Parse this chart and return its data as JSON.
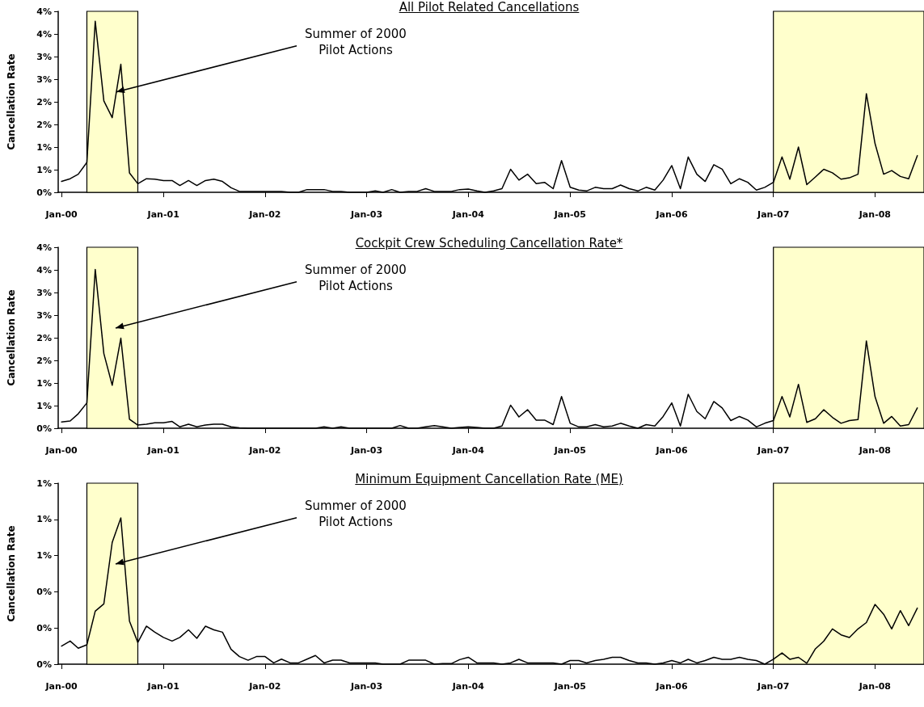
{
  "chart_data": [
    {
      "type": "line",
      "title": "All Pilot Related Cancellations",
      "ylabel": "Cancellation Rate",
      "line_style": "solid",
      "marker": "none",
      "x": [
        "2000-01",
        "2000-02",
        "2000-03",
        "2000-04",
        "2000-05",
        "2000-06",
        "2000-07",
        "2000-08",
        "2000-09",
        "2000-10",
        "2000-11",
        "2000-12",
        "2001-01",
        "2001-02",
        "2001-03",
        "2001-04",
        "2001-05",
        "2001-06",
        "2001-07",
        "2001-08",
        "2001-09",
        "2001-10",
        "2001-11",
        "2001-12",
        "2002-01",
        "2002-02",
        "2002-03",
        "2002-04",
        "2002-05",
        "2002-06",
        "2002-07",
        "2002-08",
        "2002-09",
        "2002-10",
        "2002-11",
        "2002-12",
        "2003-01",
        "2003-02",
        "2003-03",
        "2003-04",
        "2003-05",
        "2003-06",
        "2003-07",
        "2003-08",
        "2003-09",
        "2003-10",
        "2003-11",
        "2003-12",
        "2004-01",
        "2004-02",
        "2004-03",
        "2004-04",
        "2004-05",
        "2004-06",
        "2004-07",
        "2004-08",
        "2004-09",
        "2004-10",
        "2004-11",
        "2004-12",
        "2005-01",
        "2005-02",
        "2005-03",
        "2005-04",
        "2005-05",
        "2005-06",
        "2005-07",
        "2005-08",
        "2005-09",
        "2005-10",
        "2005-11",
        "2005-12",
        "2006-01",
        "2006-02",
        "2006-03",
        "2006-04",
        "2006-05",
        "2006-06",
        "2006-07",
        "2006-08",
        "2006-09",
        "2006-10",
        "2006-11",
        "2006-12",
        "2007-01",
        "2007-02",
        "2007-03",
        "2007-04",
        "2007-05",
        "2007-06",
        "2007-07",
        "2007-08",
        "2007-09",
        "2007-10",
        "2007-11",
        "2007-12",
        "2008-01",
        "2008-02",
        "2008-03",
        "2008-04",
        "2008-05",
        "2008-06"
      ],
      "series": [
        {
          "color": "#000000",
          "values": [
            0.24,
            0.3,
            0.4,
            0.66,
            3.78,
            2.02,
            1.65,
            2.83,
            0.43,
            0.19,
            0.3,
            0.29,
            0.26,
            0.26,
            0.15,
            0.26,
            0.15,
            0.26,
            0.29,
            0.24,
            0.1,
            0.02,
            0.02,
            0.02,
            0.02,
            0.02,
            0.02,
            0,
            0,
            0.06,
            0.06,
            0.06,
            0.02,
            0.02,
            0,
            0,
            0,
            0.03,
            0,
            0.06,
            0,
            0.02,
            0.02,
            0.08,
            0.02,
            0.02,
            0.02,
            0.06,
            0.07,
            0.03,
            0,
            0.03,
            0.08,
            0.51,
            0.27,
            0.4,
            0.19,
            0.22,
            0.08,
            0.7,
            0.11,
            0.05,
            0.03,
            0.11,
            0.08,
            0.08,
            0.16,
            0.08,
            0.03,
            0.11,
            0.05,
            0.27,
            0.59,
            0.08,
            0.78,
            0.4,
            0.24,
            0.61,
            0.51,
            0.19,
            0.3,
            0.22,
            0.05,
            0.11,
            0.22,
            0.78,
            0.29,
            1.0,
            0.17,
            0.34,
            0.51,
            0.43,
            0.29,
            0.32,
            0.4,
            2.18,
            1.08,
            0.4,
            0.48,
            0.35,
            0.3,
            0.81
          ]
        }
      ],
      "xlim": [
        "1999-12-20",
        "2008-06-25"
      ],
      "xticks": [
        {
          "value": "2000-01",
          "label": "Jan-00"
        },
        {
          "value": "2001-01",
          "label": "Jan-01"
        },
        {
          "value": "2002-01",
          "label": "Jan-02"
        },
        {
          "value": "2003-01",
          "label": "Jan-03"
        },
        {
          "value": "2004-01",
          "label": "Jan-04"
        },
        {
          "value": "2005-01",
          "label": "Jan-05"
        },
        {
          "value": "2006-01",
          "label": "Jan-06"
        },
        {
          "value": "2007-01",
          "label": "Jan-07"
        },
        {
          "value": "2008-01",
          "label": "Jan-08"
        }
      ],
      "ylim": [
        0,
        4
      ],
      "yticks": [
        {
          "value": 0,
          "label": "0%"
        },
        {
          "value": 0.5,
          "label": "1%"
        },
        {
          "value": 1,
          "label": "1%"
        },
        {
          "value": 1.5,
          "label": "2%"
        },
        {
          "value": 2,
          "label": "2%"
        },
        {
          "value": 2.5,
          "label": "3%"
        },
        {
          "value": 3,
          "label": "3%"
        },
        {
          "value": 3.5,
          "label": "4%"
        },
        {
          "value": 4,
          "label": "4%"
        }
      ],
      "bands": [
        {
          "axis": "x",
          "from": "2000-04",
          "to": "2000-10",
          "color": "#ffffcc"
        },
        {
          "axis": "x",
          "from": "2007-01",
          "to": "2008-06-25",
          "color": "#ffffcc"
        }
      ],
      "annotations": [
        {
          "text": "Summer of 2000 Pilot Actions",
          "x": "2000-07-16",
          "y": 2.22
        }
      ]
    },
    {
      "type": "line",
      "title": "Cockpit Crew Scheduling Cancellation Rate*",
      "ylabel": "Cancellation Rate",
      "line_style": "solid",
      "marker": "none",
      "x": [
        "2000-01",
        "2000-02",
        "2000-03",
        "2000-04",
        "2000-05",
        "2000-06",
        "2000-07",
        "2000-08",
        "2000-09",
        "2000-10",
        "2000-11",
        "2000-12",
        "2001-01",
        "2001-02",
        "2001-03",
        "2001-04",
        "2001-05",
        "2001-06",
        "2001-07",
        "2001-08",
        "2001-09",
        "2001-10",
        "2001-11",
        "2001-12",
        "2002-01",
        "2002-02",
        "2002-03",
        "2002-04",
        "2002-05",
        "2002-06",
        "2002-07",
        "2002-08",
        "2002-09",
        "2002-10",
        "2002-11",
        "2002-12",
        "2003-01",
        "2003-02",
        "2003-03",
        "2003-04",
        "2003-05",
        "2003-06",
        "2003-07",
        "2003-08",
        "2003-09",
        "2003-10",
        "2003-11",
        "2003-12",
        "2004-01",
        "2004-02",
        "2004-03",
        "2004-04",
        "2004-05",
        "2004-06",
        "2004-07",
        "2004-08",
        "2004-09",
        "2004-10",
        "2004-11",
        "2004-12",
        "2005-01",
        "2005-02",
        "2005-03",
        "2005-04",
        "2005-05",
        "2005-06",
        "2005-07",
        "2005-08",
        "2005-09",
        "2005-10",
        "2005-11",
        "2005-12",
        "2006-01",
        "2006-02",
        "2006-03",
        "2006-04",
        "2006-05",
        "2006-06",
        "2006-07",
        "2006-08",
        "2006-09",
        "2006-10",
        "2006-11",
        "2006-12",
        "2007-01",
        "2007-02",
        "2007-03",
        "2007-04",
        "2007-05",
        "2007-06",
        "2007-07",
        "2007-08",
        "2007-09",
        "2007-10",
        "2007-11",
        "2007-12",
        "2008-01",
        "2008-02",
        "2008-03",
        "2008-04",
        "2008-05",
        "2008-06"
      ],
      "series": [
        {
          "color": "#000000",
          "values": [
            0.14,
            0.16,
            0.32,
            0.56,
            3.51,
            1.65,
            0.95,
            1.99,
            0.2,
            0.07,
            0.09,
            0.12,
            0.12,
            0.15,
            0.03,
            0.09,
            0.03,
            0.07,
            0.09,
            0.09,
            0.03,
            0.01,
            0,
            0,
            0,
            0,
            0,
            0,
            0,
            0,
            0,
            0.03,
            0,
            0.03,
            0,
            0,
            0,
            0,
            0,
            0,
            0.06,
            0,
            0,
            0.03,
            0.06,
            0.03,
            0,
            0.02,
            0.03,
            0.02,
            0,
            0,
            0.05,
            0.51,
            0.25,
            0.41,
            0.18,
            0.18,
            0.08,
            0.7,
            0.11,
            0.03,
            0.03,
            0.08,
            0.03,
            0.05,
            0.11,
            0.05,
            0,
            0.08,
            0.05,
            0.26,
            0.56,
            0.05,
            0.75,
            0.37,
            0.21,
            0.59,
            0.45,
            0.17,
            0.26,
            0.18,
            0.03,
            0.11,
            0.17,
            0.7,
            0.25,
            0.97,
            0.13,
            0.21,
            0.41,
            0.24,
            0.11,
            0.17,
            0.19,
            1.93,
            0.7,
            0.11,
            0.26,
            0.05,
            0.08,
            0.45
          ]
        }
      ],
      "xlim": [
        "1999-12-20",
        "2008-06-25"
      ],
      "xticks": [
        {
          "value": "2000-01",
          "label": "Jan-00"
        },
        {
          "value": "2001-01",
          "label": "Jan-01"
        },
        {
          "value": "2002-01",
          "label": "Jan-02"
        },
        {
          "value": "2003-01",
          "label": "Jan-03"
        },
        {
          "value": "2004-01",
          "label": "Jan-04"
        },
        {
          "value": "2005-01",
          "label": "Jan-05"
        },
        {
          "value": "2006-01",
          "label": "Jan-06"
        },
        {
          "value": "2007-01",
          "label": "Jan-07"
        },
        {
          "value": "2008-01",
          "label": "Jan-08"
        }
      ],
      "ylim": [
        0,
        4
      ],
      "yticks": [
        {
          "value": 0,
          "label": "0%"
        },
        {
          "value": 0.5,
          "label": "1%"
        },
        {
          "value": 1,
          "label": "1%"
        },
        {
          "value": 1.5,
          "label": "2%"
        },
        {
          "value": 2,
          "label": "2%"
        },
        {
          "value": 2.5,
          "label": "3%"
        },
        {
          "value": 3,
          "label": "3%"
        },
        {
          "value": 3.5,
          "label": "4%"
        },
        {
          "value": 4,
          "label": "4%"
        }
      ],
      "bands": [
        {
          "axis": "x",
          "from": "2000-04",
          "to": "2000-10",
          "color": "#ffffcc"
        },
        {
          "axis": "x",
          "from": "2007-01",
          "to": "2008-06-25",
          "color": "#ffffcc"
        }
      ],
      "annotations": [
        "Summer of 2000 Pilot Actions"
      ]
    },
    {
      "type": "line",
      "title": "Minimum Equipment Cancellation Rate (ME)",
      "ylabel": "Cancellation Rate",
      "line_style": "solid",
      "marker": "none",
      "x": [
        "2000-01",
        "2000-02",
        "2000-03",
        "2000-04",
        "2000-05",
        "2000-06",
        "2000-07",
        "2000-08",
        "2000-09",
        "2000-10",
        "2000-11",
        "2000-12",
        "2001-01",
        "2001-02",
        "2001-03",
        "2001-04",
        "2001-05",
        "2001-06",
        "2001-07",
        "2001-08",
        "2001-09",
        "2001-10",
        "2001-11",
        "2001-12",
        "2002-01",
        "2002-02",
        "2002-03",
        "2002-04",
        "2002-05",
        "2002-06",
        "2002-07",
        "2002-08",
        "2002-09",
        "2002-10",
        "2002-11",
        "2002-12",
        "2003-01",
        "2003-02",
        "2003-03",
        "2003-04",
        "2003-05",
        "2003-06",
        "2003-07",
        "2003-08",
        "2003-09",
        "2003-10",
        "2003-11",
        "2003-12",
        "2004-01",
        "2004-02",
        "2004-03",
        "2004-04",
        "2004-05",
        "2004-06",
        "2004-07",
        "2004-08",
        "2004-09",
        "2004-10",
        "2004-11",
        "2004-12",
        "2005-01",
        "2005-02",
        "2005-03",
        "2005-04",
        "2005-05",
        "2005-06",
        "2005-07",
        "2005-08",
        "2005-09",
        "2005-10",
        "2005-11",
        "2005-12",
        "2006-01",
        "2006-02",
        "2006-03",
        "2006-04",
        "2006-05",
        "2006-06",
        "2006-07",
        "2006-08",
        "2006-09",
        "2006-10",
        "2006-11",
        "2006-12",
        "2007-01",
        "2007-02",
        "2007-03",
        "2007-04",
        "2007-05",
        "2007-06",
        "2007-07",
        "2007-08",
        "2007-09",
        "2007-10",
        "2007-11",
        "2007-12",
        "2008-01",
        "2008-02",
        "2008-03",
        "2008-04",
        "2008-05",
        "2008-06"
      ],
      "series": [
        {
          "color": "#000000",
          "values": [
            0.1,
            0.128,
            0.088,
            0.107,
            0.293,
            0.333,
            0.673,
            0.808,
            0.238,
            0.12,
            0.21,
            0.177,
            0.148,
            0.128,
            0.148,
            0.19,
            0.143,
            0.21,
            0.19,
            0.177,
            0.082,
            0.042,
            0.022,
            0.042,
            0.042,
            0.007,
            0.028,
            0.007,
            0.007,
            0.028,
            0.048,
            0.007,
            0.022,
            0.022,
            0.007,
            0.007,
            0.007,
            0.007,
            0,
            0,
            0,
            0.022,
            0.022,
            0.022,
            0,
            0.003,
            0.003,
            0.025,
            0.038,
            0.007,
            0.007,
            0.007,
            0,
            0.007,
            0.027,
            0.007,
            0.007,
            0.007,
            0.007,
            0,
            0.02,
            0.02,
            0.007,
            0.02,
            0.027,
            0.038,
            0.038,
            0.02,
            0.007,
            0.007,
            0,
            0.007,
            0.02,
            0.007,
            0.027,
            0.007,
            0.02,
            0.038,
            0.027,
            0.027,
            0.038,
            0.027,
            0.02,
            0,
            0.027,
            0.062,
            0.027,
            0.038,
            0.005,
            0.085,
            0.127,
            0.195,
            0.162,
            0.147,
            0.195,
            0.23,
            0.33,
            0.276,
            0.195,
            0.296,
            0.213,
            0.31
          ]
        }
      ],
      "xlim": [
        "1999-12-20",
        "2008-06-25"
      ],
      "xticks": [
        {
          "value": "2000-01",
          "label": "Jan-00"
        },
        {
          "value": "2001-01",
          "label": "Jan-01"
        },
        {
          "value": "2002-01",
          "label": "Jan-02"
        },
        {
          "value": "2003-01",
          "label": "Jan-03"
        },
        {
          "value": "2004-01",
          "label": "Jan-04"
        },
        {
          "value": "2005-01",
          "label": "Jan-05"
        },
        {
          "value": "2006-01",
          "label": "Jan-06"
        },
        {
          "value": "2007-01",
          "label": "Jan-07"
        },
        {
          "value": "2008-01",
          "label": "Jan-08"
        }
      ],
      "ylim": [
        0,
        1
      ],
      "yticks": [
        {
          "value": 0,
          "label": "0%"
        },
        {
          "value": 0.2,
          "label": "0%"
        },
        {
          "value": 0.4,
          "label": "0%"
        },
        {
          "value": 0.6,
          "label": "1%"
        },
        {
          "value": 0.8,
          "label": "1%"
        },
        {
          "value": 1,
          "label": "1%"
        }
      ],
      "bands": [
        {
          "axis": "x",
          "from": "2000-04",
          "to": "2000-10",
          "color": "#ffffcc"
        },
        {
          "axis": "x",
          "from": "2007-01",
          "to": "2008-06-25",
          "color": "#ffffcc"
        }
      ],
      "annotations": [
        "Summer of 2000 Pilot Actions"
      ]
    }
  ]
}
